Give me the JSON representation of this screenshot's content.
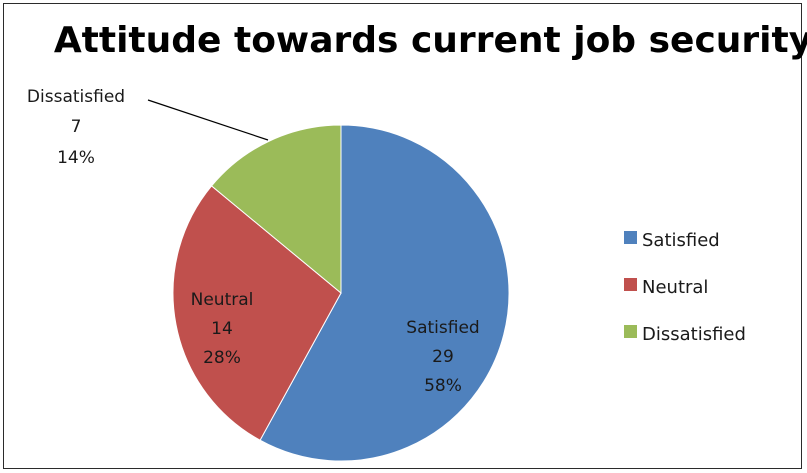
{
  "chart_data": {
    "type": "pie",
    "title": "Attitude towards current job security",
    "categories": [
      "Satisfied",
      "Neutral",
      "Dissatisfied"
    ],
    "values": [
      29,
      14,
      7
    ],
    "percentages": [
      "58%",
      "28%",
      "14%"
    ],
    "colors": [
      "#4f81bd",
      "#c0504d",
      "#9bbb59"
    ],
    "legend": {
      "placement": "right",
      "entries": [
        "Satisfied",
        "Neutral",
        "Dissatisfied"
      ]
    },
    "data_labels": [
      {
        "name": "Satisfied",
        "value": "29",
        "percent": "58%"
      },
      {
        "name": "Neutral",
        "value": "14",
        "percent": "28%"
      },
      {
        "name": "Dissatisfied",
        "value": "7",
        "percent": "14%"
      }
    ]
  }
}
